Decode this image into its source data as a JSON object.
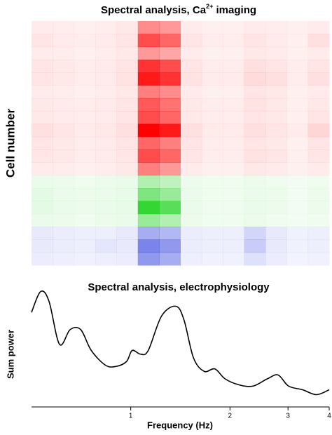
{
  "chart_data": [
    {
      "type": "heatmap",
      "title": [
        "Spectral analysis, Ca",
        "2+",
        " imaging"
      ],
      "ylabel": "Cell number",
      "series": [
        {
          "color": "#ff0000",
          "values": [
            [
              0.08,
              0.07,
              0.06,
              0.07,
              0.09,
              0.45,
              0.4,
              0.08,
              0.06,
              0.06,
              0.08,
              0.07,
              0.06,
              0.08
            ],
            [
              0.1,
              0.08,
              0.07,
              0.08,
              0.1,
              0.7,
              0.6,
              0.1,
              0.07,
              0.07,
              0.1,
              0.08,
              0.06,
              0.12
            ],
            [
              0.08,
              0.07,
              0.06,
              0.07,
              0.09,
              0.4,
              0.35,
              0.08,
              0.06,
              0.06,
              0.09,
              0.08,
              0.06,
              0.08
            ],
            [
              0.1,
              0.09,
              0.07,
              0.08,
              0.1,
              0.8,
              0.7,
              0.1,
              0.07,
              0.07,
              0.12,
              0.1,
              0.07,
              0.1
            ],
            [
              0.1,
              0.09,
              0.07,
              0.08,
              0.11,
              0.9,
              0.8,
              0.11,
              0.08,
              0.08,
              0.14,
              0.12,
              0.07,
              0.12
            ],
            [
              0.08,
              0.07,
              0.06,
              0.07,
              0.09,
              0.5,
              0.45,
              0.08,
              0.06,
              0.06,
              0.1,
              0.09,
              0.06,
              0.08
            ],
            [
              0.09,
              0.08,
              0.07,
              0.08,
              0.1,
              0.65,
              0.55,
              0.09,
              0.07,
              0.07,
              0.11,
              0.09,
              0.06,
              0.09
            ],
            [
              0.09,
              0.08,
              0.07,
              0.08,
              0.1,
              0.7,
              0.6,
              0.09,
              0.07,
              0.07,
              0.1,
              0.09,
              0.06,
              0.1
            ],
            [
              0.12,
              0.1,
              0.08,
              0.09,
              0.12,
              1.0,
              0.9,
              0.12,
              0.08,
              0.08,
              0.12,
              0.1,
              0.08,
              0.16
            ],
            [
              0.1,
              0.09,
              0.07,
              0.08,
              0.1,
              0.6,
              0.5,
              0.1,
              0.07,
              0.07,
              0.1,
              0.09,
              0.06,
              0.1
            ],
            [
              0.1,
              0.09,
              0.07,
              0.08,
              0.1,
              0.7,
              0.6,
              0.1,
              0.07,
              0.07,
              0.11,
              0.1,
              0.06,
              0.1
            ],
            [
              0.08,
              0.07,
              0.06,
              0.07,
              0.09,
              0.5,
              0.4,
              0.08,
              0.06,
              0.06,
              0.09,
              0.08,
              0.06,
              0.08
            ]
          ]
        },
        {
          "color": "#00cc00",
          "values": [
            [
              0.08,
              0.07,
              0.06,
              0.07,
              0.08,
              0.3,
              0.25,
              0.07,
              0.06,
              0.06,
              0.07,
              0.06,
              0.05,
              0.06
            ],
            [
              0.1,
              0.08,
              0.07,
              0.08,
              0.09,
              0.5,
              0.4,
              0.08,
              0.06,
              0.06,
              0.08,
              0.07,
              0.05,
              0.07
            ],
            [
              0.1,
              0.08,
              0.07,
              0.08,
              0.09,
              0.8,
              0.65,
              0.08,
              0.06,
              0.06,
              0.08,
              0.07,
              0.05,
              0.07
            ],
            [
              0.08,
              0.07,
              0.06,
              0.07,
              0.08,
              0.4,
              0.3,
              0.07,
              0.06,
              0.06,
              0.07,
              0.06,
              0.05,
              0.06
            ]
          ]
        },
        {
          "color": "#2233dd",
          "values": [
            [
              0.1,
              0.09,
              0.08,
              0.08,
              0.1,
              0.4,
              0.35,
              0.09,
              0.08,
              0.08,
              0.2,
              0.1,
              0.07,
              0.08
            ],
            [
              0.1,
              0.09,
              0.08,
              0.12,
              0.1,
              0.6,
              0.5,
              0.09,
              0.08,
              0.08,
              0.25,
              0.1,
              0.07,
              0.08
            ],
            [
              0.09,
              0.08,
              0.07,
              0.08,
              0.09,
              0.5,
              0.4,
              0.08,
              0.07,
              0.07,
              0.15,
              0.09,
              0.06,
              0.07
            ]
          ]
        }
      ]
    },
    {
      "type": "line",
      "title": "Spectral analysis, electrophysiology",
      "xlabel": "Frequency (Hz)",
      "ylabel": "Sum power",
      "xscale": "log",
      "xlim": [
        0.5,
        4
      ],
      "xticks": [
        1,
        2,
        3,
        4
      ],
      "ylim": [
        0,
        1
      ],
      "color": "#000000",
      "x": [
        0.5,
        0.533,
        0.565,
        0.608,
        0.655,
        0.705,
        0.759,
        0.838,
        0.902,
        0.971,
        1.01,
        1.07,
        1.13,
        1.24,
        1.37,
        1.45,
        1.55,
        1.67,
        1.8,
        1.93,
        2.13,
        2.35,
        2.6,
        2.8,
        3.01,
        3.32,
        3.66,
        4.0
      ],
      "values": [
        0.77,
        0.94,
        0.86,
        0.51,
        0.63,
        0.63,
        0.46,
        0.34,
        0.33,
        0.37,
        0.46,
        0.43,
        0.46,
        0.74,
        0.82,
        0.71,
        0.4,
        0.29,
        0.31,
        0.23,
        0.18,
        0.17,
        0.23,
        0.26,
        0.17,
        0.14,
        0.1,
        0.14
      ]
    }
  ]
}
